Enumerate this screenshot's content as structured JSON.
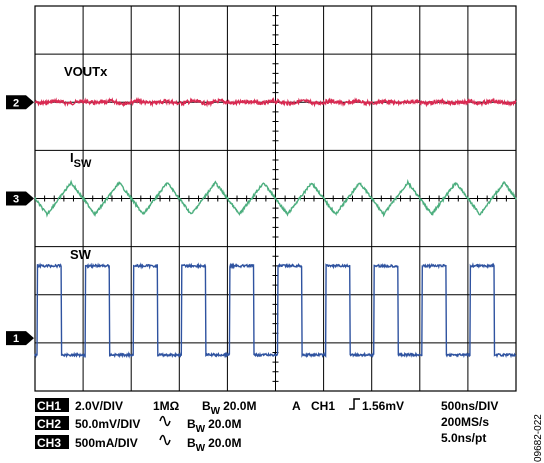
{
  "chart_data": {
    "type": "line",
    "title": "",
    "grid": true,
    "divisions": {
      "x": 10,
      "y": 8
    },
    "series": [
      {
        "name": "VOUTx",
        "channel": 2,
        "marker_label": "2",
        "color": "#d92a52",
        "waveform": "dc-noise",
        "center_div": 2.0,
        "noise_div": 0.04,
        "period_div": null
      },
      {
        "name": "I",
        "subscript": "SW",
        "channel": 3,
        "marker_label": "3",
        "color": "#4cae7e",
        "waveform": "triangle",
        "center_div": 4.0,
        "amplitude_div": 0.33,
        "period_div": 1.0
      },
      {
        "name": "SW",
        "channel": 1,
        "marker_label": "1",
        "color": "#2f53a0",
        "waveform": "square",
        "low_div": 7.25,
        "high_div": 5.4,
        "period_div": 1.0
      }
    ]
  },
  "settings": {
    "ch1": {
      "tag": "CH1",
      "scale": "2.0V/DIV",
      "coupling": "1MΩ",
      "bw_prefix": "B",
      "bw_sub": "W",
      "bw": "20.0M"
    },
    "ch2": {
      "tag": "CH2",
      "scale": "50.0mV/DIV",
      "bw_prefix": "B",
      "bw_sub": "W",
      "bw": "20.0M"
    },
    "ch3": {
      "tag": "CH3",
      "scale": "500mA/DIV",
      "bw_prefix": "B",
      "bw_sub": "W",
      "bw": "20.0M"
    },
    "trigger": {
      "mode": "A",
      "source": "CH1",
      "level": "1.56mV"
    },
    "timebase": "500ns/DIV",
    "sample_rate": "200MS/s",
    "resolution": "5.0ns/pt"
  },
  "figure_id": "09682-022",
  "colors": {
    "grid": "#000000",
    "ch1": "#2f53a0",
    "ch2": "#d92a52",
    "ch3": "#4cae7e"
  }
}
